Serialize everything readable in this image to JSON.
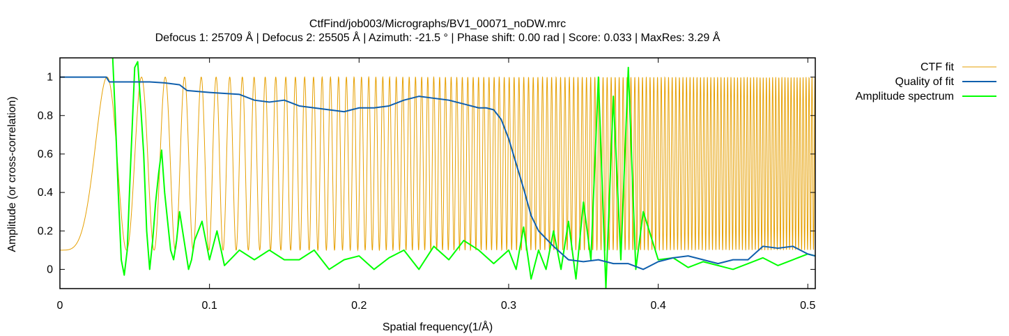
{
  "chart_data": {
    "type": "line",
    "title": "CtfFind/job003/Micrographs/BV1_00071_noDW.mrc",
    "subtitle": "Defocus 1: 25709 Å | Defocus 2: 25505 Å | Azimuth: -21.5 ° | Phase shift: 0.00 rad | Score: 0.033 | MaxRes: 3.29 Å",
    "xlabel": "Spatial frequency(1/Å)",
    "ylabel": "Amplitude (or cross-correlation)",
    "xlim": [
      0,
      0.505
    ],
    "ylim": [
      -0.1,
      1.1
    ],
    "x_ticks": [
      0,
      0.1,
      0.2,
      0.3,
      0.4,
      0.5
    ],
    "x_tick_labels": [
      "0",
      "0.1",
      "0.2",
      "0.3",
      "0.4",
      "0.5"
    ],
    "y_ticks": [
      0,
      0.2,
      0.4,
      0.6,
      0.8,
      1
    ],
    "y_tick_labels": [
      "0",
      "0.2",
      "0.4",
      "0.6",
      "0.8",
      "1"
    ],
    "grid": false,
    "legend_position": "top-right, outside plot",
    "series": [
      {
        "name": "CTF fit",
        "color": "#e69f00",
        "style": "oscillating CTF, zeros derived from defocus",
        "defocus_angstrom": 25600,
        "wavelength_angstrom": 0.0197,
        "min_value": 0.1,
        "max_value": 1.0
      },
      {
        "name": "Quality of fit",
        "color": "#0f5fad",
        "x": [
          0,
          0.031,
          0.033,
          0.06,
          0.07,
          0.08,
          0.085,
          0.1,
          0.12,
          0.13,
          0.14,
          0.15,
          0.16,
          0.17,
          0.18,
          0.19,
          0.2,
          0.21,
          0.22,
          0.23,
          0.24,
          0.25,
          0.26,
          0.27,
          0.28,
          0.285,
          0.29,
          0.295,
          0.3,
          0.305,
          0.31,
          0.315,
          0.32,
          0.33,
          0.34,
          0.35,
          0.36,
          0.37,
          0.38,
          0.39,
          0.4,
          0.41,
          0.42,
          0.43,
          0.44,
          0.45,
          0.46,
          0.47,
          0.48,
          0.49,
          0.5,
          0.505
        ],
        "y": [
          1.0,
          1.0,
          0.975,
          0.975,
          0.97,
          0.96,
          0.93,
          0.92,
          0.91,
          0.88,
          0.87,
          0.88,
          0.85,
          0.84,
          0.83,
          0.82,
          0.84,
          0.84,
          0.85,
          0.88,
          0.9,
          0.89,
          0.88,
          0.86,
          0.84,
          0.84,
          0.83,
          0.78,
          0.68,
          0.55,
          0.42,
          0.28,
          0.2,
          0.12,
          0.05,
          0.04,
          0.05,
          0.03,
          0.03,
          0.0,
          0.04,
          0.06,
          0.07,
          0.05,
          0.03,
          0.05,
          0.05,
          0.12,
          0.11,
          0.12,
          0.08,
          0.07
        ]
      },
      {
        "name": "Amplitude spectrum",
        "color": "#00ff00",
        "x": [
          0.035,
          0.037,
          0.039,
          0.041,
          0.043,
          0.045,
          0.047,
          0.05,
          0.052,
          0.054,
          0.056,
          0.058,
          0.06,
          0.062,
          0.064,
          0.066,
          0.068,
          0.07,
          0.072,
          0.074,
          0.076,
          0.078,
          0.08,
          0.082,
          0.084,
          0.086,
          0.088,
          0.09,
          0.095,
          0.1,
          0.105,
          0.11,
          0.12,
          0.13,
          0.14,
          0.15,
          0.16,
          0.17,
          0.18,
          0.19,
          0.2,
          0.21,
          0.22,
          0.23,
          0.24,
          0.25,
          0.26,
          0.27,
          0.28,
          0.29,
          0.3,
          0.305,
          0.31,
          0.315,
          0.32,
          0.325,
          0.33,
          0.335,
          0.34,
          0.345,
          0.35,
          0.355,
          0.36,
          0.365,
          0.37,
          0.375,
          0.38,
          0.385,
          0.39,
          0.4,
          0.41,
          0.42,
          0.43,
          0.44,
          0.45,
          0.46,
          0.47,
          0.48,
          0.49,
          0.5,
          0.505
        ],
        "y": [
          1.15,
          0.8,
          0.4,
          0.05,
          -0.03,
          0.1,
          0.5,
          1.05,
          1.08,
          0.85,
          0.6,
          0.2,
          0.0,
          0.15,
          0.35,
          0.5,
          0.62,
          0.4,
          0.25,
          0.1,
          0.05,
          0.15,
          0.3,
          0.2,
          0.1,
          0.0,
          0.05,
          0.15,
          0.25,
          0.05,
          0.2,
          0.02,
          0.1,
          0.05,
          0.1,
          0.05,
          0.05,
          0.1,
          0.0,
          0.05,
          0.07,
          0.0,
          0.06,
          0.1,
          0.0,
          0.12,
          0.05,
          0.15,
          0.1,
          0.03,
          0.1,
          0.0,
          0.22,
          -0.05,
          0.1,
          0.0,
          0.2,
          0.0,
          0.25,
          -0.05,
          0.35,
          0.05,
          1.0,
          -0.1,
          0.9,
          0.05,
          1.05,
          0.0,
          0.3,
          0.05,
          0.06,
          0.01,
          0.04,
          0.02,
          0.0,
          0.03,
          0.06,
          0.02,
          0.05,
          0.08,
          0.07
        ]
      }
    ]
  }
}
